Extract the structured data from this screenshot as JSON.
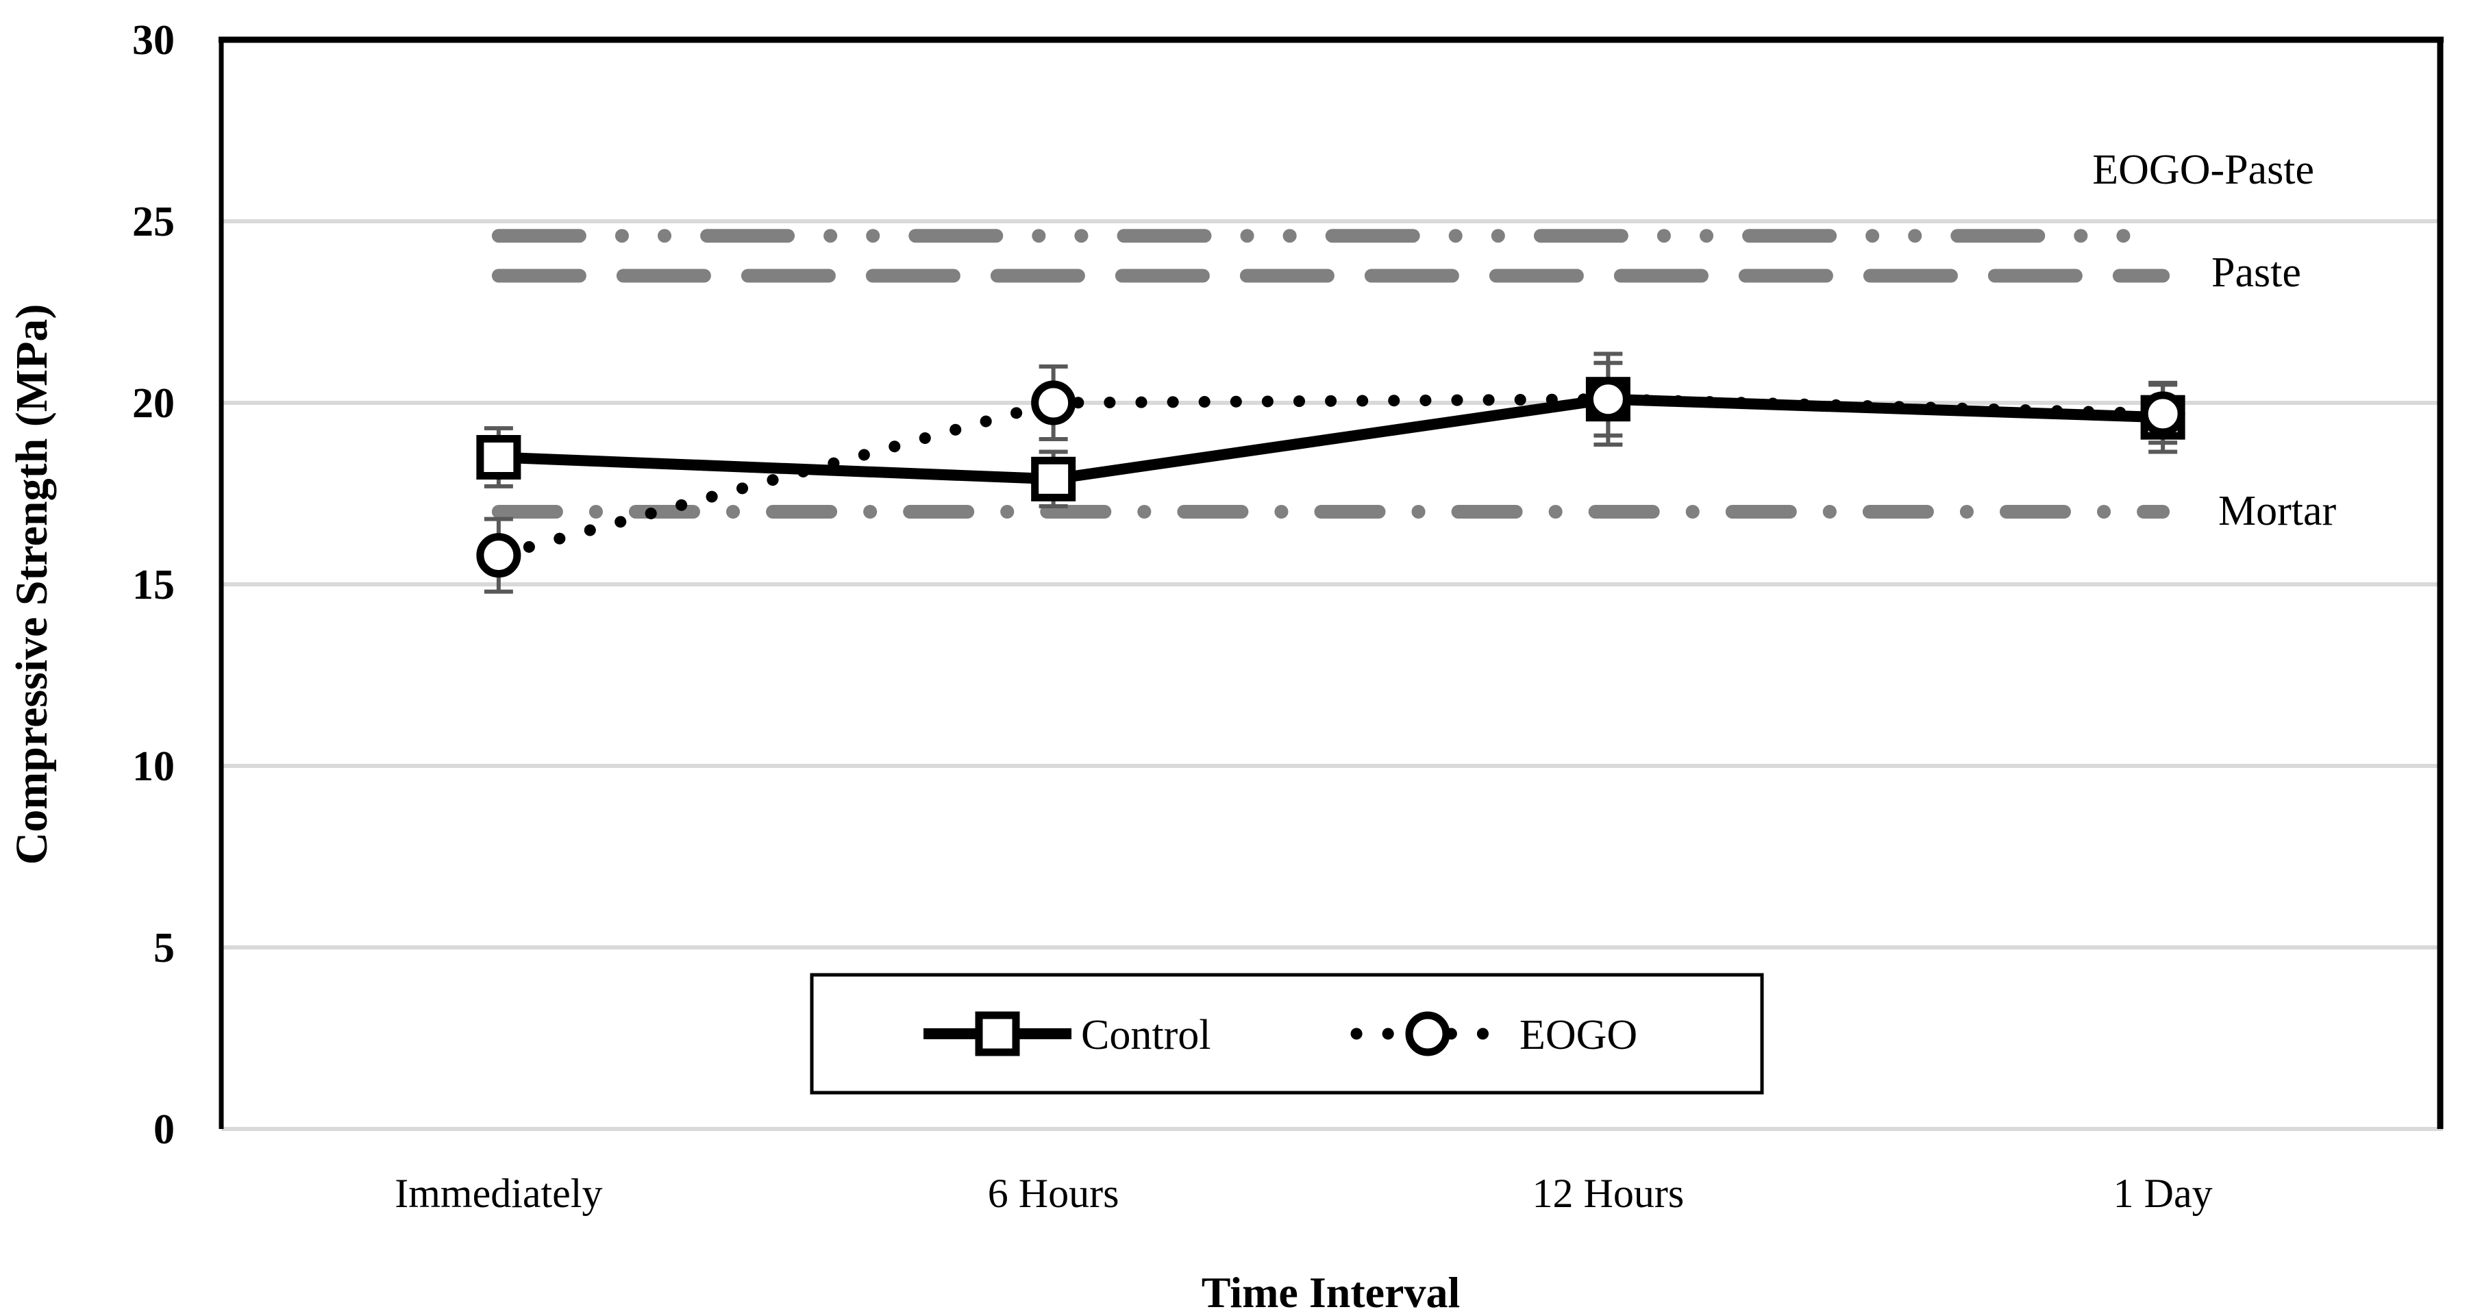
{
  "chart_data": {
    "type": "line",
    "title": "",
    "xlabel": "Time Interval",
    "ylabel": "Compressive Strength (MPa)",
    "ylim": [
      0,
      30
    ],
    "y_tick_step": 5,
    "y_tick_labels": [
      "0",
      "5",
      "10",
      "15",
      "20",
      "25",
      "30"
    ],
    "grid": "horizontal",
    "categories": [
      "Immediately",
      "6 Hours",
      "12 Hours",
      "1 Day"
    ],
    "series": [
      {
        "name": "Control",
        "marker": "square",
        "line_style": "solid",
        "values": [
          18.5,
          17.9,
          20.1,
          19.6
        ],
        "error_bars": [
          0.8,
          0.75,
          1.25,
          0.95
        ]
      },
      {
        "name": "EOGO",
        "marker": "circle",
        "line_style": "dotted",
        "values": [
          15.8,
          20.0,
          20.1,
          19.7
        ],
        "error_bars": [
          1.0,
          1.0,
          1.0,
          0.8
        ]
      }
    ],
    "reference_lines": [
      {
        "label": "EOGO-Paste",
        "value": 24.6,
        "style": "long-dash-dot-dot"
      },
      {
        "label": "Paste",
        "value": 23.5,
        "style": "long-dash"
      },
      {
        "label": "Mortar",
        "value": 17.0,
        "style": "dash-dot"
      }
    ],
    "legend": {
      "position": "bottom-center",
      "items": [
        "Control",
        "EOGO"
      ]
    }
  },
  "colors": {
    "background": "#ffffff",
    "axis": "#000000",
    "gridline": "#d9d9d9",
    "series": "#000000",
    "marker_fill": "#ffffff",
    "error_bar": "#595959",
    "reference_line": "#808080",
    "text": "#000000"
  }
}
